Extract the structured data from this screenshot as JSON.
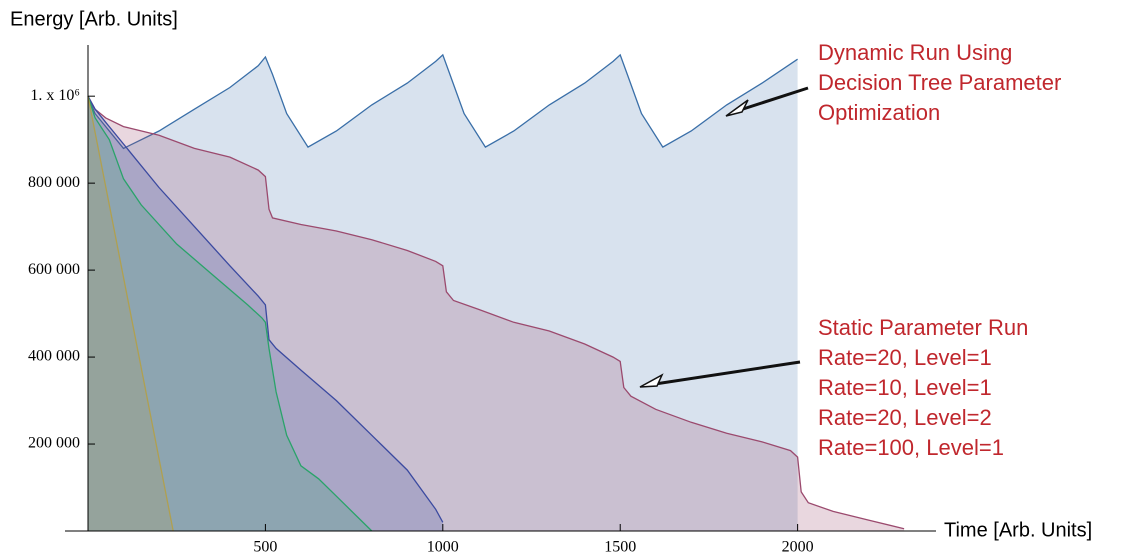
{
  "chart_data": {
    "type": "area",
    "xlabel": "Time [Arb. Units]",
    "ylabel": "Energy [Arb. Units]",
    "legend_title": "Static Parameter Run",
    "xlim": [
      0,
      2390
    ],
    "ylim": [
      0,
      1120000
    ],
    "xticks": [
      500,
      1000,
      1500,
      2000
    ],
    "yticks": [
      {
        "value": 200000,
        "label": "200 000"
      },
      {
        "value": 400000,
        "label": "400 000"
      },
      {
        "value": 600000,
        "label": "600 000"
      },
      {
        "value": 800000,
        "label": "800 000"
      },
      {
        "value": 1000000,
        "label": "1. x 10⁶"
      }
    ],
    "series": [
      {
        "name": "Dynamic Run Using Decision Tree Parameter Optimization",
        "color": "#3a6fa8",
        "x": [
          0,
          20,
          100,
          200,
          300,
          400,
          480,
          500,
          520,
          560,
          620,
          700,
          800,
          900,
          980,
          1000,
          1020,
          1060,
          1120,
          1200,
          1300,
          1400,
          1480,
          1500,
          1520,
          1560,
          1620,
          1700,
          1800,
          1900,
          2000
        ],
        "values": [
          1000000,
          960000,
          880000,
          920000,
          970000,
          1020000,
          1070000,
          1090000,
          1050000,
          960000,
          883000,
          920000,
          980000,
          1030000,
          1080000,
          1095000,
          1050000,
          960000,
          883000,
          920000,
          980000,
          1030000,
          1080000,
          1095000,
          1050000,
          960000,
          883000,
          920000,
          980000,
          1030000,
          1085000
        ]
      },
      {
        "name": "Rate=20, Level=1",
        "color": "#9b4a6e",
        "x": [
          0,
          20,
          50,
          100,
          200,
          300,
          400,
          480,
          500,
          510,
          520,
          600,
          700,
          800,
          900,
          980,
          1000,
          1010,
          1030,
          1100,
          1200,
          1300,
          1400,
          1480,
          1500,
          1510,
          1530,
          1600,
          1700,
          1800,
          1900,
          1980,
          2000,
          2010,
          2030,
          2100,
          2200,
          2300
        ],
        "values": [
          1000000,
          970000,
          950000,
          930000,
          910000,
          880000,
          860000,
          830000,
          815000,
          740000,
          720000,
          705000,
          690000,
          670000,
          645000,
          620000,
          610000,
          550000,
          530000,
          510000,
          480000,
          460000,
          430000,
          400000,
          390000,
          330000,
          310000,
          280000,
          250000,
          225000,
          205000,
          185000,
          170000,
          90000,
          65000,
          45000,
          25000,
          5000
        ]
      },
      {
        "name": "Rate=10, Level=1",
        "color": "#3b4aa0",
        "x": [
          0,
          20,
          50,
          100,
          200,
          300,
          400,
          480,
          500,
          510,
          530,
          600,
          700,
          800,
          900,
          980,
          1000
        ],
        "values": [
          1000000,
          970000,
          940000,
          890000,
          790000,
          700000,
          610000,
          540000,
          520000,
          440000,
          420000,
          370000,
          300000,
          220000,
          140000,
          50000,
          20000
        ]
      },
      {
        "name": "Rate=20, Level=2",
        "color": "#2aa36a",
        "x": [
          0,
          20,
          60,
          100,
          150,
          250,
          350,
          450,
          490,
          500,
          510,
          530,
          560,
          600,
          650,
          700,
          750,
          800
        ],
        "values": [
          1000000,
          950000,
          900000,
          810000,
          750000,
          660000,
          590000,
          520000,
          490000,
          480000,
          420000,
          320000,
          220000,
          150000,
          120000,
          80000,
          40000,
          0
        ]
      },
      {
        "name": "Rate=100, Level=1",
        "color": "#b0a050",
        "x": [
          0,
          240
        ],
        "values": [
          1000000,
          0
        ]
      }
    ]
  }
}
